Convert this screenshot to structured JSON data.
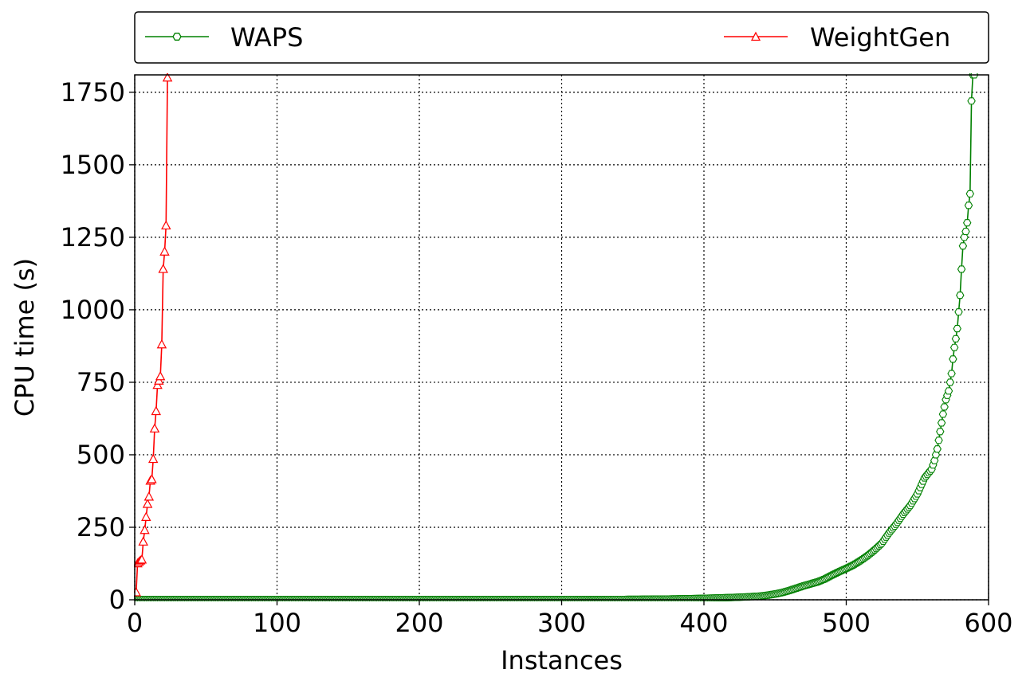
{
  "chart_data": {
    "type": "line",
    "title": "",
    "xlabel": "Instances",
    "ylabel": "CPU time (s)",
    "xlim": [
      0,
      600
    ],
    "ylim": [
      0,
      1810
    ],
    "xticks": [
      0,
      100,
      200,
      300,
      400,
      500,
      600
    ],
    "yticks": [
      0,
      250,
      500,
      750,
      1000,
      1250,
      1500,
      1750
    ],
    "grid": true,
    "legend_position": "top, above plot",
    "series": [
      {
        "name": "WAPS",
        "color": "#008000",
        "marker": "hexagon-open",
        "n": 590,
        "points": [
          [
            1,
            1
          ],
          [
            50,
            1
          ],
          [
            100,
            1
          ],
          [
            150,
            1
          ],
          [
            200,
            1
          ],
          [
            250,
            1
          ],
          [
            300,
            1
          ],
          [
            350,
            1.5
          ],
          [
            380,
            3
          ],
          [
            400,
            5
          ],
          [
            420,
            8
          ],
          [
            430,
            10
          ],
          [
            440,
            13
          ],
          [
            445,
            16
          ],
          [
            450,
            20
          ],
          [
            455,
            25
          ],
          [
            460,
            32
          ],
          [
            465,
            40
          ],
          [
            470,
            48
          ],
          [
            475,
            55
          ],
          [
            480,
            62
          ],
          [
            485,
            72
          ],
          [
            490,
            85
          ],
          [
            495,
            97
          ],
          [
            500,
            108
          ],
          [
            505,
            120
          ],
          [
            510,
            135
          ],
          [
            515,
            152
          ],
          [
            520,
            172
          ],
          [
            525,
            195
          ],
          [
            530,
            230
          ],
          [
            535,
            260
          ],
          [
            540,
            295
          ],
          [
            545,
            325
          ],
          [
            550,
            365
          ],
          [
            555,
            420
          ],
          [
            560,
            450
          ],
          [
            562,
            480
          ],
          [
            564,
            520
          ],
          [
            566,
            580
          ],
          [
            568,
            640
          ],
          [
            570,
            690
          ],
          [
            572,
            720
          ],
          [
            574,
            780
          ],
          [
            575,
            830
          ],
          [
            576,
            870
          ],
          [
            577,
            900
          ],
          [
            578,
            935
          ],
          [
            580,
            1050
          ],
          [
            581,
            1140
          ],
          [
            582,
            1220
          ],
          [
            583,
            1250
          ],
          [
            584,
            1270
          ],
          [
            585,
            1300
          ],
          [
            586,
            1360
          ],
          [
            587,
            1400
          ],
          [
            588,
            1720
          ],
          [
            589,
            1810
          ]
        ]
      },
      {
        "name": "WeightGen",
        "color": "#ff0000",
        "marker": "triangle-open",
        "points": [
          [
            1,
            25
          ],
          [
            2,
            125
          ],
          [
            3,
            130
          ],
          [
            4,
            135
          ],
          [
            5,
            138
          ],
          [
            6,
            200
          ],
          [
            7,
            240
          ],
          [
            8,
            285
          ],
          [
            9,
            330
          ],
          [
            10,
            355
          ],
          [
            11,
            410
          ],
          [
            12,
            415
          ],
          [
            13,
            485
          ],
          [
            14,
            590
          ],
          [
            15,
            650
          ],
          [
            16,
            740
          ],
          [
            17,
            755
          ],
          [
            18,
            770
          ],
          [
            19,
            880
          ],
          [
            20,
            1140
          ],
          [
            21,
            1200
          ],
          [
            22,
            1290
          ],
          [
            23,
            1800
          ]
        ]
      }
    ]
  }
}
